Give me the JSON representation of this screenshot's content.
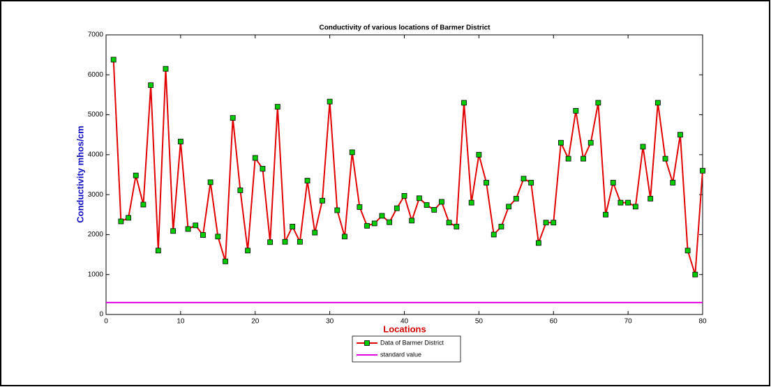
{
  "chart_data": {
    "type": "line",
    "title": "Conductivity of various locations of Barmer District",
    "x_label": "Locations",
    "y_label": "Conductivity mhos/cm",
    "xlim": [
      0,
      80
    ],
    "ylim": [
      0,
      7000
    ],
    "xticks": [
      0,
      10,
      20,
      30,
      40,
      50,
      60,
      70,
      80
    ],
    "yticks": [
      0,
      1000,
      2000,
      3000,
      4000,
      5000,
      6000,
      7000
    ],
    "grid": false,
    "legend": "bottom",
    "series": [
      {
        "name": "Data of Barmer District",
        "color": "#e00000",
        "marker_color": "#00cc00",
        "x": [
          1,
          2,
          3,
          4,
          5,
          6,
          7,
          8,
          9,
          10,
          11,
          12,
          13,
          14,
          15,
          16,
          17,
          18,
          19,
          20,
          21,
          22,
          23,
          24,
          25,
          26,
          27,
          28,
          29,
          30,
          31,
          32,
          33,
          34,
          35,
          36,
          37,
          38,
          39,
          40,
          41,
          42,
          43,
          44,
          45,
          46,
          47,
          48,
          49,
          50,
          51,
          52,
          53,
          54,
          55,
          56,
          57,
          58,
          59,
          60,
          61,
          62,
          63,
          64,
          65,
          66,
          67,
          68,
          69,
          70,
          71,
          72,
          73,
          74,
          75,
          76,
          77,
          78,
          79,
          80
        ],
        "values": [
          6380,
          2330,
          2420,
          3480,
          2750,
          5740,
          1600,
          6150,
          2090,
          4330,
          2140,
          2230,
          1990,
          3310,
          1950,
          1330,
          4920,
          3110,
          1600,
          3920,
          3650,
          1810,
          5200,
          1820,
          2200,
          1820,
          3350,
          2050,
          2850,
          5330,
          2610,
          1950,
          4060,
          2690,
          2220,
          2280,
          2470,
          2310,
          2660,
          2970,
          2350,
          2910,
          2740,
          2620,
          2820,
          2300,
          2200,
          5300,
          2800,
          4000,
          3300,
          2000,
          2200,
          2700,
          2900,
          3400,
          3300,
          1790,
          2300,
          2300,
          4300,
          3900,
          5100,
          3900,
          4300,
          5300,
          2500,
          3300,
          2800,
          2800,
          2700,
          4200,
          2900,
          5300,
          3900,
          3300,
          4500,
          1600,
          1000,
          3600
        ]
      },
      {
        "name": "standard value",
        "color": "#e000e0",
        "x": [
          0,
          80
        ],
        "values": [
          300,
          300
        ]
      }
    ]
  }
}
